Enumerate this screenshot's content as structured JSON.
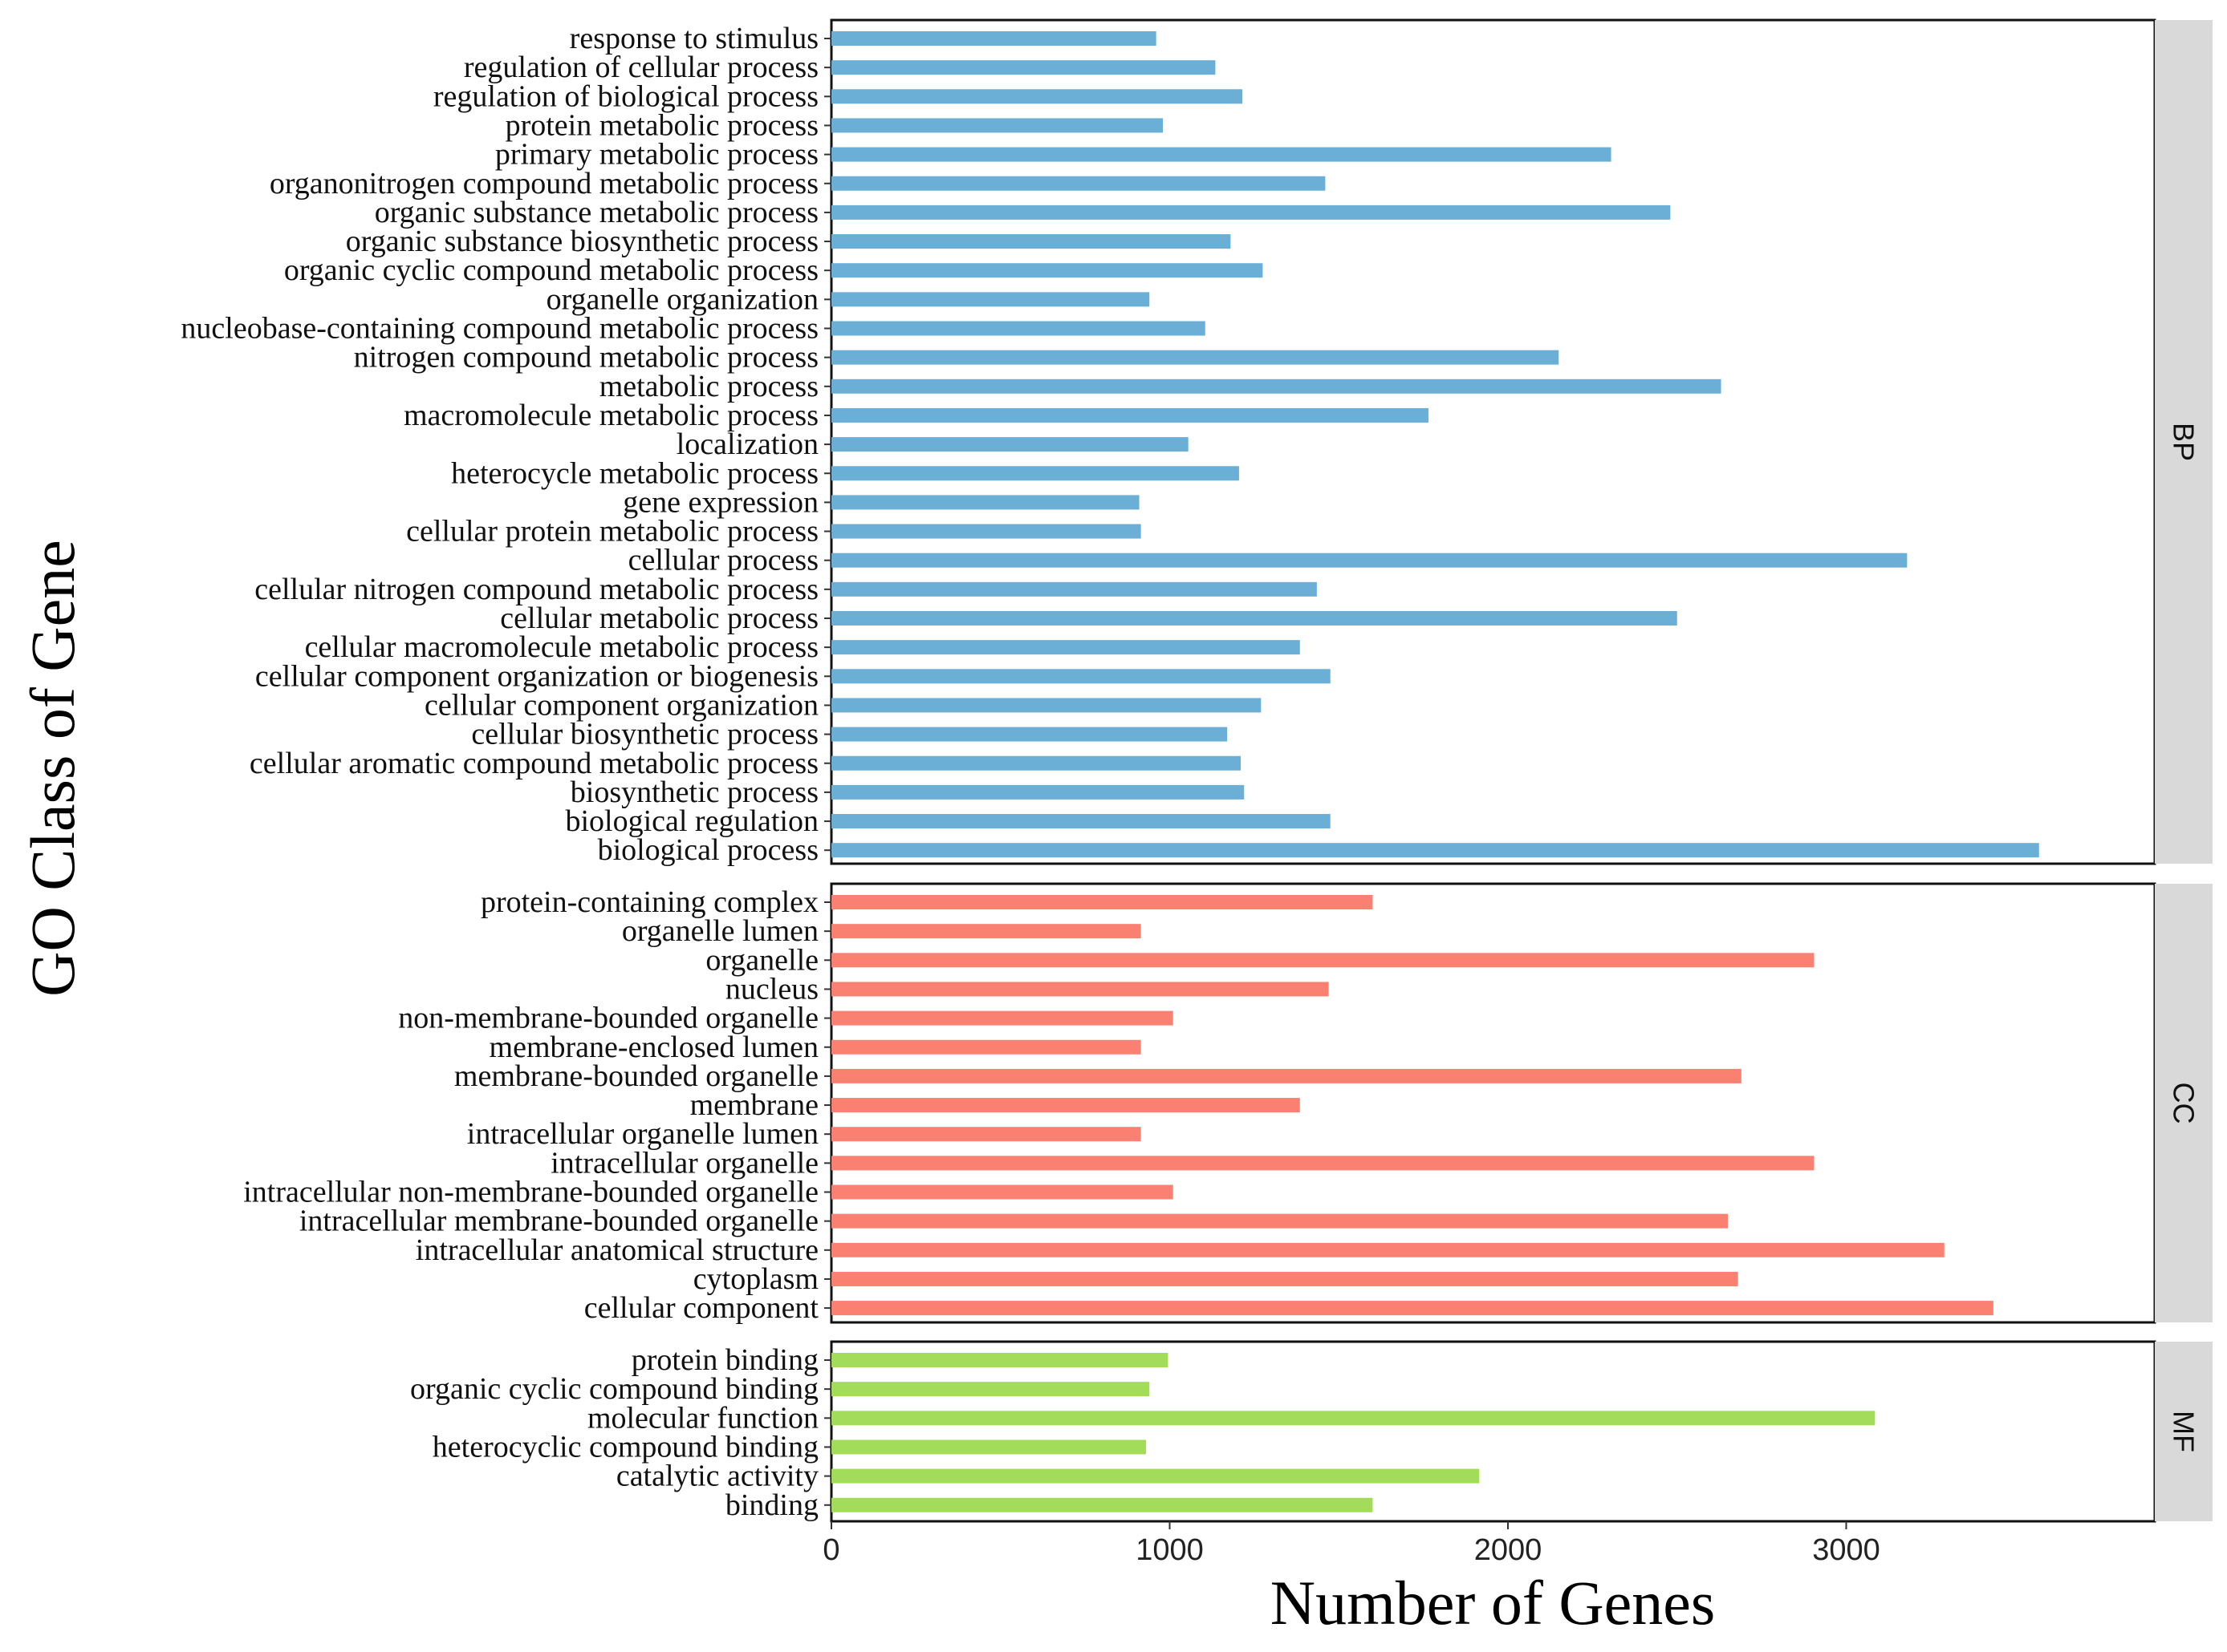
{
  "chart_data": {
    "type": "bar",
    "orientation": "horizontal",
    "xlabel": "Number of Genes",
    "ylabel": "GO Class of Gene",
    "xlim": [
      0,
      3900
    ],
    "xticks": [
      0,
      1000,
      2000,
      3000
    ],
    "grid": false,
    "colors": {
      "BP": "#6BAED6",
      "CC": "#FA8072",
      "MF": "#A3DB5A",
      "strip": "#D9D9D9"
    },
    "panels": [
      {
        "name": "BP",
        "categories": [
          "response to stimulus",
          "regulation of cellular process",
          "regulation of biological process",
          "protein metabolic process",
          "primary metabolic process",
          "organonitrogen compound metabolic process",
          "organic substance metabolic process",
          "organic substance biosynthetic process",
          "organic cyclic compound metabolic process",
          "organelle organization",
          "nucleobase-containing compound metabolic process",
          "nitrogen compound metabolic process",
          "metabolic process",
          "macromolecule metabolic process",
          "localization",
          "heterocycle metabolic process",
          "gene expression",
          "cellular protein metabolic process",
          "cellular process",
          "cellular nitrogen compound metabolic process",
          "cellular metabolic process",
          "cellular macromolecule metabolic process",
          "cellular component organization or biogenesis",
          "cellular component organization",
          "cellular biosynthetic process",
          "cellular aromatic compound metabolic process",
          "biosynthetic process",
          "biological regulation",
          "biological process"
        ],
        "values": [
          960,
          1135,
          1215,
          980,
          2305,
          1460,
          2480,
          1180,
          1275,
          940,
          1105,
          2150,
          2630,
          1765,
          1055,
          1205,
          910,
          915,
          3180,
          1435,
          2500,
          1385,
          1475,
          1270,
          1170,
          1210,
          1220,
          1475,
          3570
        ]
      },
      {
        "name": "CC",
        "categories": [
          "protein-containing complex",
          "organelle lumen",
          "organelle",
          "nucleus",
          "non-membrane-bounded organelle",
          "membrane-enclosed lumen",
          "membrane-bounded organelle",
          "membrane",
          "intracellular organelle lumen",
          "intracellular organelle",
          "intracellular non-membrane-bounded organelle",
          "intracellular membrane-bounded organelle",
          "intracellular anatomical structure",
          "cytoplasm",
          "cellular component"
        ],
        "values": [
          1600,
          915,
          2905,
          1470,
          1010,
          915,
          2690,
          1385,
          915,
          2905,
          1010,
          2650,
          3290,
          2680,
          3435
        ]
      },
      {
        "name": "MF",
        "categories": [
          "protein binding",
          "organic cyclic compound binding",
          "molecular function",
          "heterocyclic compound binding",
          "catalytic activity",
          "binding"
        ],
        "values": [
          995,
          940,
          3085,
          930,
          1915,
          1600
        ]
      }
    ]
  }
}
